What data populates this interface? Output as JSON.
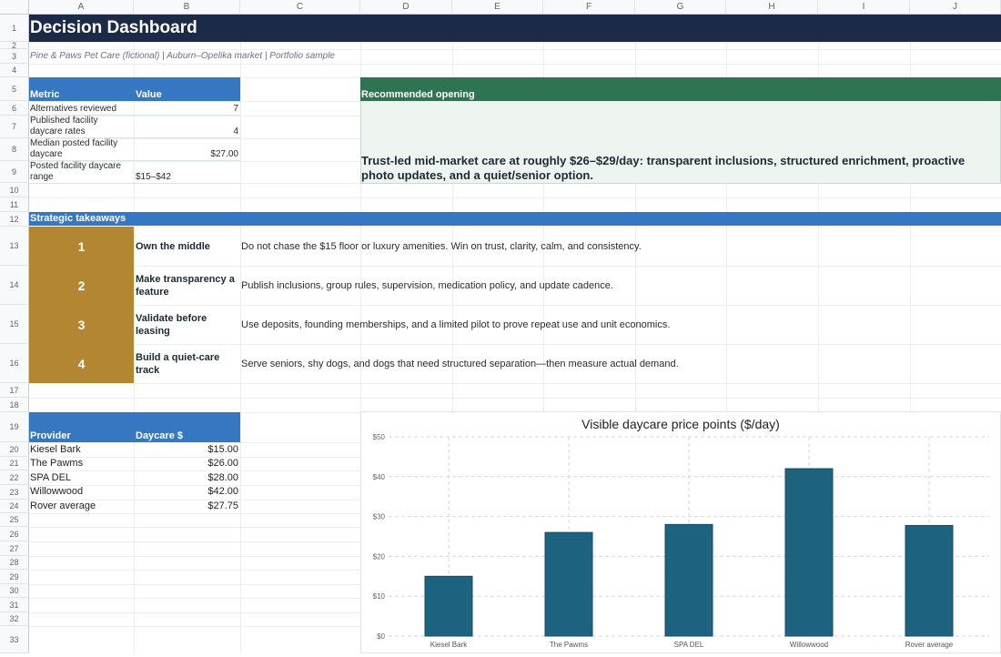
{
  "columns": [
    "A",
    "B",
    "C",
    "D",
    "E",
    "F",
    "G",
    "H",
    "I",
    "J"
  ],
  "rows": [
    "1",
    "2",
    "3",
    "4",
    "5",
    "6",
    "7",
    "8",
    "9",
    "10",
    "11",
    "12",
    "13",
    "14",
    "15",
    "16",
    "17",
    "18",
    "19",
    "20",
    "21",
    "22",
    "23",
    "24",
    "25",
    "26",
    "27",
    "28",
    "29",
    "30",
    "31",
    "32",
    "33"
  ],
  "title": "Decision Dashboard",
  "subtitle": "Pine & Paws Pet Care (fictional) | Auburn–Opelika market | Portfolio sample",
  "metrics": {
    "header_metric": "Metric",
    "header_value": "Value",
    "rows": [
      {
        "label": "Alternatives reviewed",
        "value": "7"
      },
      {
        "label": "Published facility daycare rates",
        "value": "4"
      },
      {
        "label": "Median posted facility daycare",
        "value": "$27.00"
      },
      {
        "label": "Posted facility daycare range",
        "value": "$15–$42"
      }
    ]
  },
  "recommended": {
    "header": "Recommended opening",
    "text": "Trust-led mid-market care at roughly $26–$29/day: transparent inclusions, structured enrichment, proactive photo updates, and a quiet/senior option."
  },
  "takeaways": {
    "header": "Strategic takeaways",
    "items": [
      {
        "num": "1",
        "title": "Own the middle",
        "desc": "Do not chase the $15 floor or luxury amenities. Win on trust, clarity, calm, and consistency."
      },
      {
        "num": "2",
        "title": "Make transparency a feature",
        "desc": "Publish inclusions, group rules, supervision, medication policy, and update cadence."
      },
      {
        "num": "3",
        "title": "Validate before leasing",
        "desc": "Use deposits, founding memberships, and a limited pilot to prove repeat use and unit economics."
      },
      {
        "num": "4",
        "title": "Build a quiet-care track",
        "desc": "Serve seniors, shy dogs, and dogs that need structured separation—then measure actual demand."
      }
    ]
  },
  "providers": {
    "header_provider": "Provider",
    "header_price": "Daycare $",
    "rows": [
      {
        "name": "Kiesel Bark",
        "price": "$15.00"
      },
      {
        "name": "The Pawms",
        "price": "$26.00"
      },
      {
        "name": "SPA DEL",
        "price": "$28.00"
      },
      {
        "name": "Willowwood",
        "price": "$42.00"
      },
      {
        "name": "Rover average",
        "price": "$27.75"
      }
    ]
  },
  "colors": {
    "title_bar": "#1b2a47",
    "blue_header": "#3578c1",
    "green_header": "#2e7352",
    "gold": "#b38632",
    "bar": "#1d6380"
  },
  "chart_data": {
    "type": "bar",
    "title": "Visible daycare price points ($/day)",
    "categories": [
      "Kiesel Bark",
      "The Pawms",
      "SPA DEL",
      "Willowwood",
      "Rover average"
    ],
    "values": [
      15,
      26,
      28,
      42,
      27.75
    ],
    "ylim": [
      0,
      50
    ],
    "yticks": [
      "$0",
      "$10",
      "$20",
      "$30",
      "$40",
      "$50"
    ],
    "grid": true,
    "xlabel": "",
    "ylabel": ""
  }
}
